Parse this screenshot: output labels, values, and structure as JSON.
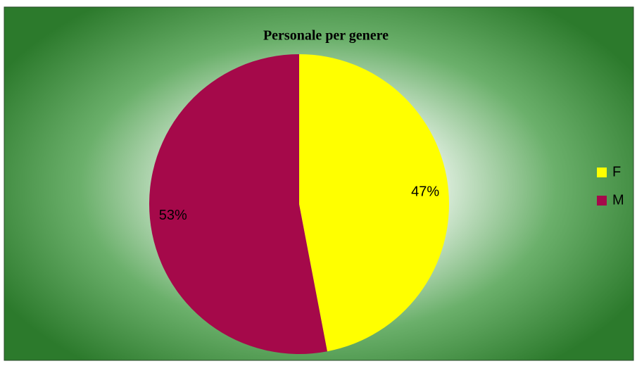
{
  "chart_data": {
    "type": "pie",
    "title": "Personale per genere",
    "categories": [
      "F",
      "M"
    ],
    "values": [
      47,
      53
    ],
    "value_labels": [
      "47%",
      "53%"
    ],
    "colors": [
      "#ffff00",
      "#a5094a"
    ],
    "legend": "right"
  }
}
